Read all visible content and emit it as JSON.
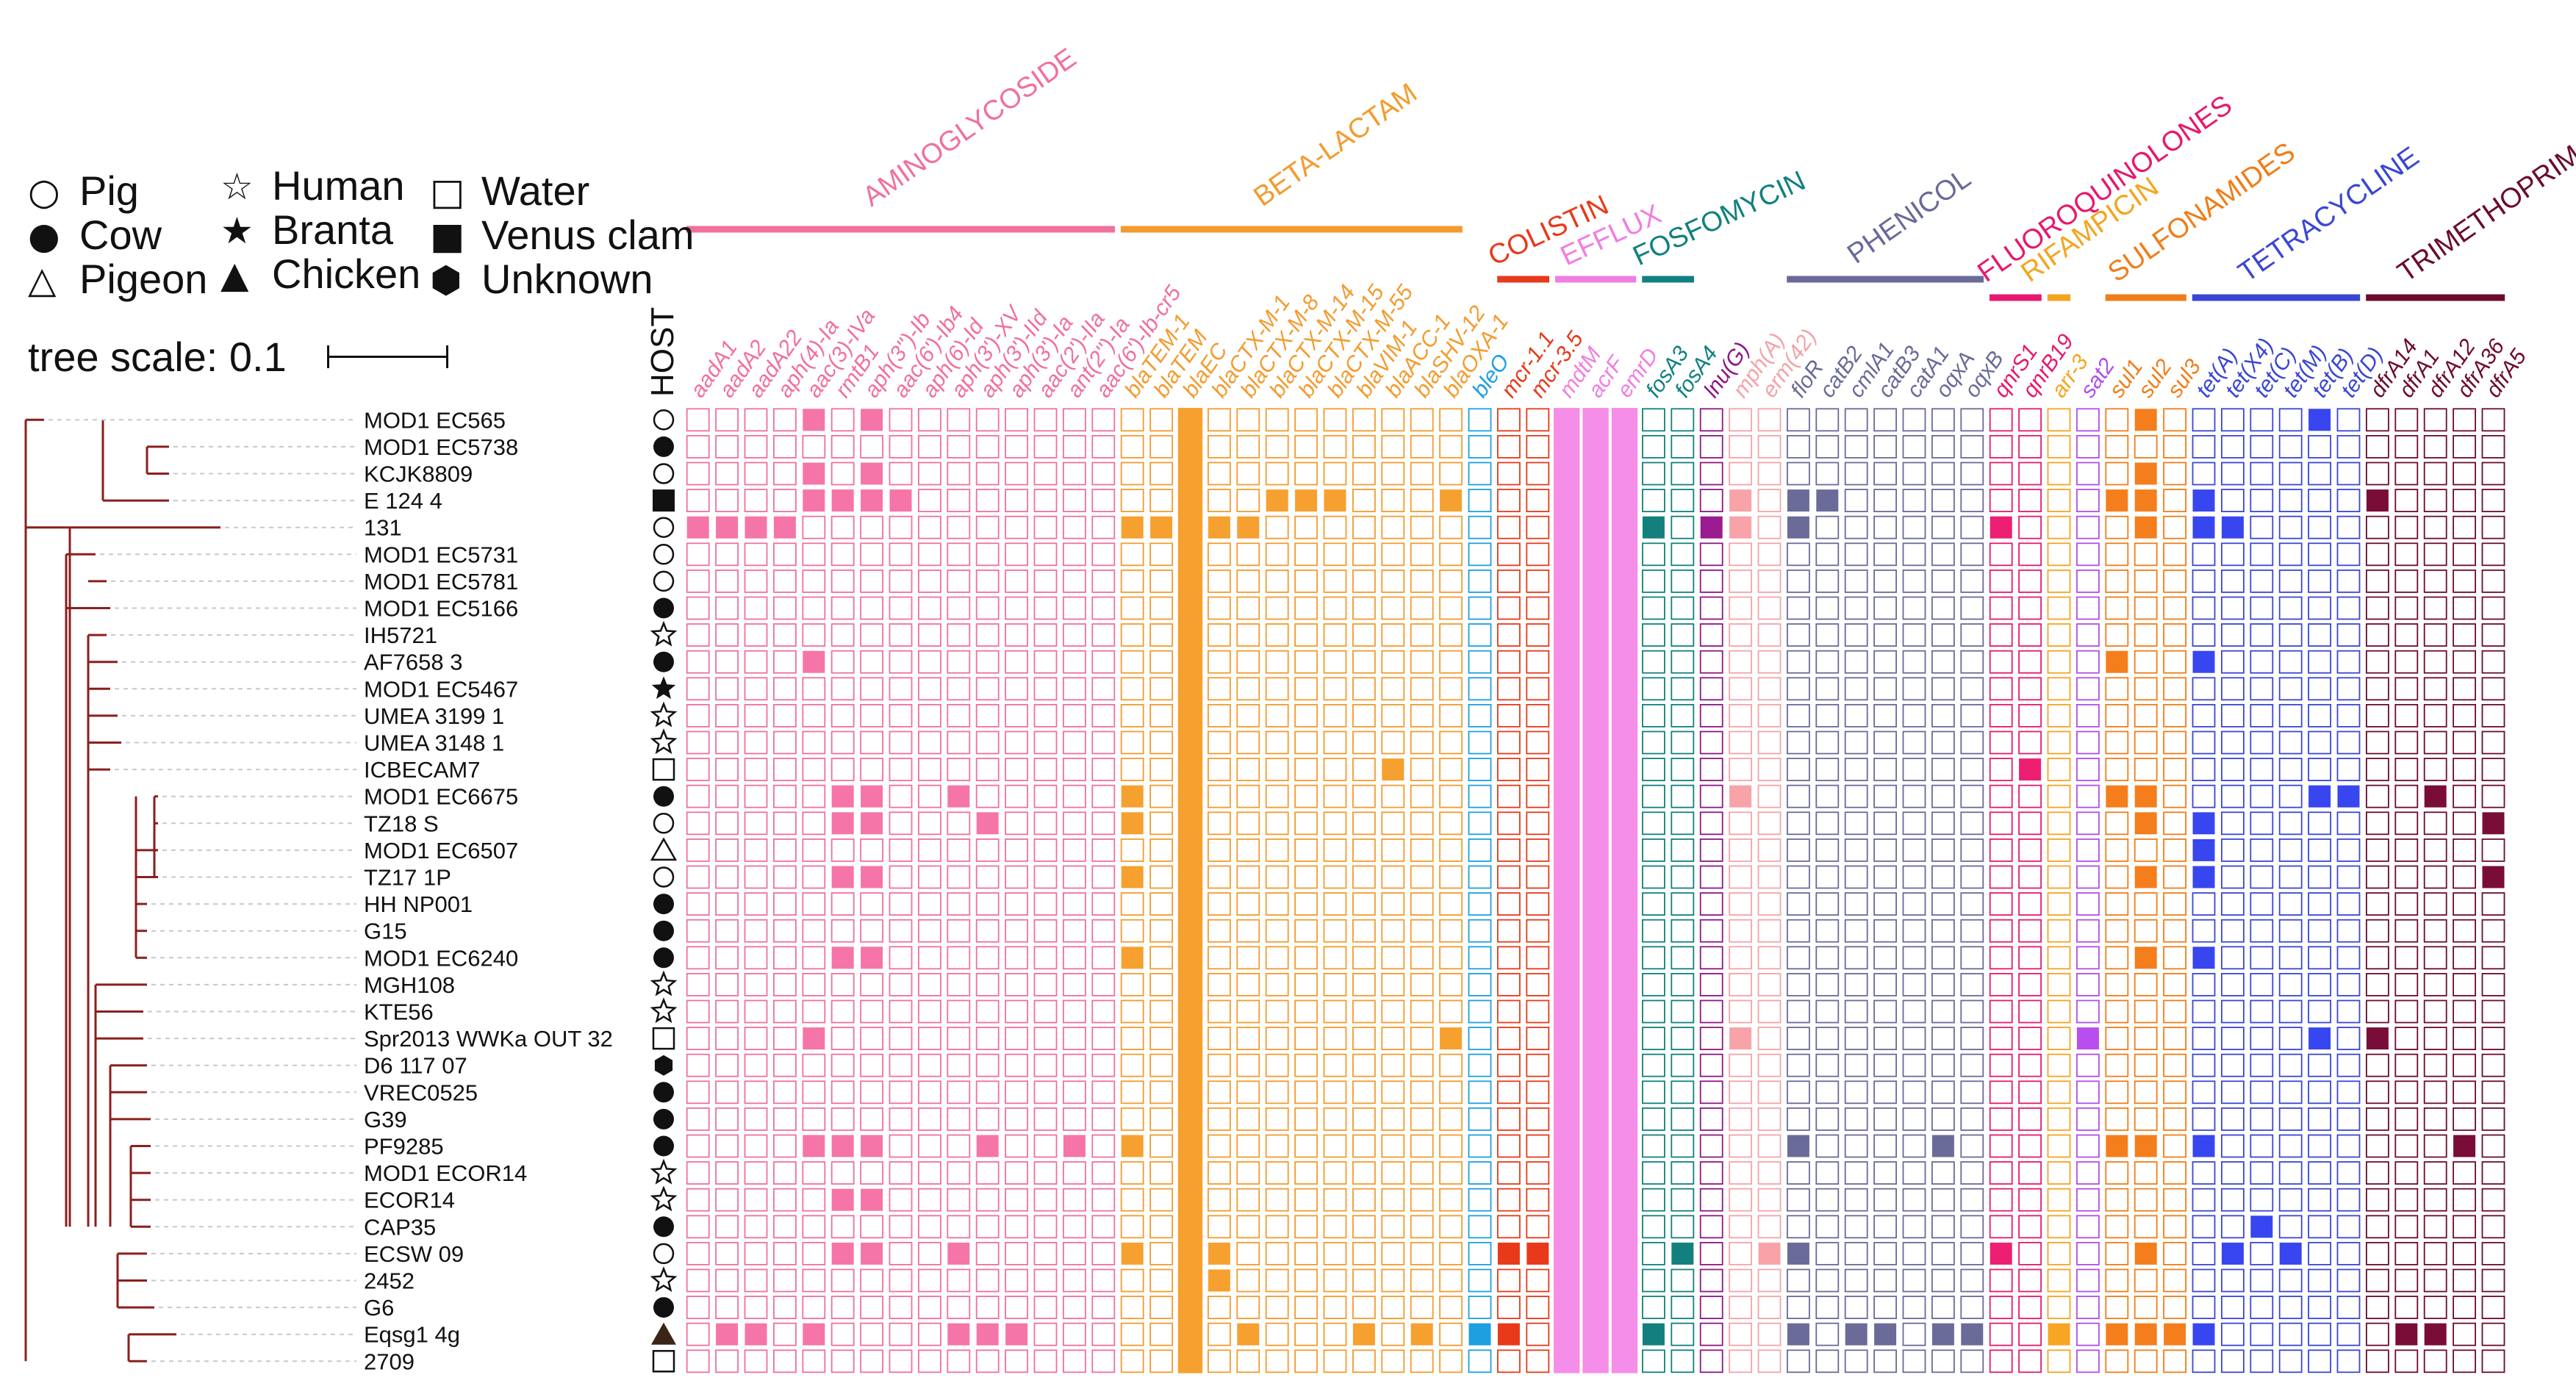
{
  "legend": {
    "items": [
      {
        "icon": "open-circle",
        "glyph": "○",
        "label": "Pig"
      },
      {
        "icon": "filled-circle",
        "glyph": "●",
        "label": "Cow"
      },
      {
        "icon": "open-triangle",
        "glyph": "△",
        "label": "Pigeon"
      },
      {
        "icon": "open-star",
        "glyph": "☆",
        "label": "Human"
      },
      {
        "icon": "filled-star",
        "glyph": "★",
        "label": "Branta"
      },
      {
        "icon": "filled-triangle",
        "glyph": "▲",
        "label": "Chicken"
      },
      {
        "icon": "open-square",
        "glyph": "□",
        "label": "Water"
      },
      {
        "icon": "filled-square",
        "glyph": "■",
        "label": "Venus clam"
      },
      {
        "icon": "filled-hexagon",
        "glyph": "⬢",
        "label": "Unknown"
      }
    ]
  },
  "scale": {
    "label": "tree scale: 0.1"
  },
  "host_header": "HOST",
  "strains": [
    {
      "name": "MOD1 EC565",
      "host": "pig"
    },
    {
      "name": "MOD1 EC5738",
      "host": "cow"
    },
    {
      "name": "KCJK8809",
      "host": "pig"
    },
    {
      "name": "E 124 4",
      "host": "venus"
    },
    {
      "name": "131",
      "host": "pig"
    },
    {
      "name": "MOD1 EC5731",
      "host": "pig"
    },
    {
      "name": "MOD1 EC5781",
      "host": "pig"
    },
    {
      "name": "MOD1 EC5166",
      "host": "cow"
    },
    {
      "name": "IH5721",
      "host": "human"
    },
    {
      "name": "AF7658 3",
      "host": "cow"
    },
    {
      "name": "MOD1 EC5467",
      "host": "branta"
    },
    {
      "name": "UMEA 3199 1",
      "host": "human"
    },
    {
      "name": "UMEA 3148 1",
      "host": "human"
    },
    {
      "name": "ICBECAM7",
      "host": "water"
    },
    {
      "name": "MOD1 EC6675",
      "host": "cow"
    },
    {
      "name": "TZ18 S",
      "host": "pig"
    },
    {
      "name": "MOD1 EC6507",
      "host": "pigeon"
    },
    {
      "name": "TZ17 1P",
      "host": "pig"
    },
    {
      "name": "HH NP001",
      "host": "cow"
    },
    {
      "name": "G15",
      "host": "cow"
    },
    {
      "name": "MOD1 EC6240",
      "host": "cow"
    },
    {
      "name": "MGH108",
      "host": "human"
    },
    {
      "name": "KTE56",
      "host": "human"
    },
    {
      "name": "Spr2013 WWKa OUT 32",
      "host": "water"
    },
    {
      "name": "D6 117 07",
      "host": "unknown"
    },
    {
      "name": "VREC0525",
      "host": "cow"
    },
    {
      "name": "G39",
      "host": "cow"
    },
    {
      "name": "PF9285",
      "host": "cow"
    },
    {
      "name": "MOD1 ECOR14",
      "host": "human"
    },
    {
      "name": "ECOR14",
      "host": "human"
    },
    {
      "name": "CAP35",
      "host": "cow"
    },
    {
      "name": "ECSW 09",
      "host": "pig"
    },
    {
      "name": "2452",
      "host": "human"
    },
    {
      "name": "G6",
      "host": "cow"
    },
    {
      "name": "Eqsg1 4g",
      "host": "chicken"
    },
    {
      "name": "2709",
      "host": "water"
    }
  ],
  "groups": [
    {
      "name": "AMINOGLYCOSIDE",
      "color": "#f0709e",
      "fill": "#f575a8",
      "genes": [
        "aadA1",
        "aadA2",
        "aadA22",
        "aph(4)-Ia",
        "aac(3)-IVa",
        "rmtB1",
        "aph(3'')-Ib",
        "aac(6')-Ib4",
        "aph(6)-Id",
        "aph(3')-XV",
        "aph(3')-IId",
        "aph(3')-Ia",
        "aac(2')-IIa",
        "ant(2'')-Ia",
        "aac(6')-Ib-cr5"
      ]
    },
    {
      "name": "BETA-LACTAM",
      "color": "#f39b2e",
      "fill": "#f6a030",
      "genes": [
        "blaTEM-1",
        "blaTEM",
        "blaEC",
        "blaCTX-M-1",
        "blaCTX-M-8",
        "blaCTX-M-14",
        "blaCTX-M-15",
        "blaCTX-M-55",
        "blaVIM-1",
        "blaACC-1",
        "blaSHV-12",
        "blaOXA-1"
      ]
    },
    {
      "name": "",
      "color": "#1e9fe0",
      "fill": "#1e9fe0",
      "genes": [
        "bleO"
      ]
    },
    {
      "name": "COLISTIN",
      "color": "#e8391a",
      "fill": "#e8391a",
      "genes": [
        "mcr-1.1",
        "mcr-3.5"
      ]
    },
    {
      "name": "EFFLUX",
      "color": "#f07ee2",
      "fill": "#f58ee8",
      "genes": [
        "mdtM",
        "acrF",
        "emrD"
      ]
    },
    {
      "name": "FOSFOMYCIN",
      "color": "#118080",
      "fill": "#13807e",
      "genes": [
        "fosA3",
        "fosA4"
      ]
    },
    {
      "name": "",
      "color": "#8e1685",
      "fill": "#9b1a90",
      "genes": [
        "lnu(G)"
      ]
    },
    {
      "name": "",
      "color": "#f4a3a8",
      "fill": "#f7a3a8",
      "genes": [
        "mph(A)",
        "erm(42)"
      ]
    },
    {
      "name": "PHENICOL",
      "color": "#6a6a98",
      "fill": "#6b6b9a",
      "genes": [
        "floR",
        "catB2",
        "cmlA1",
        "catB3",
        "catA1",
        "oqxA",
        "oqxB"
      ]
    },
    {
      "name": "FLUOROQUINOLONES",
      "color": "#e6196e",
      "fill": "#ec1f72",
      "genes": [
        "qnrS1",
        "qnrB19"
      ]
    },
    {
      "name": "RIFAMPICIN",
      "color": "#f4a51f",
      "fill": "#f6a622",
      "genes": [
        "arr-3"
      ]
    },
    {
      "name": "",
      "color": "#b14ee8",
      "fill": "#b84ef0",
      "genes": [
        "sat2"
      ]
    },
    {
      "name": "SULFONAMIDES",
      "color": "#f07d18",
      "fill": "#f57e1c",
      "genes": [
        "sul1",
        "sul2",
        "sul3"
      ]
    },
    {
      "name": "TETRACYCLINE",
      "color": "#3a46d4",
      "fill": "#3846f0",
      "genes": [
        "tet(A)",
        "tet(X4)",
        "tet(C)",
        "tet(M)",
        "tet(B)",
        "tet(D)"
      ]
    },
    {
      "name": "TRIMETHOPRIM",
      "color": "#6c0b2e",
      "fill": "#7a0d38",
      "genes": [
        "dfrA14",
        "dfrA1",
        "dfrA12",
        "dfrA36",
        "dfrA5"
      ]
    }
  ],
  "present": {
    "MOD1 EC565": [
      "blaEC",
      "tet(B)",
      "aac(3)-IVa",
      "aph(3'')-Ib",
      "sul2"
    ],
    "MOD1 EC5738": [
      "blaEC"
    ],
    "KCJK8809": [
      "aac(3)-IVa",
      "aph(3'')-Ib",
      "blaEC",
      "sul2"
    ],
    "E 124 4": [
      "aac(3)-IVa",
      "rmtB1",
      "aph(3'')-Ib",
      "aac(6')-Ib4",
      "blaEC",
      "blaCTX-M-14",
      "blaCTX-M-15",
      "blaCTX-M-55",
      "blaOXA-1",
      "mph(A)",
      "floR",
      "catB2",
      "sul1",
      "sul2",
      "tet(A)",
      "dfrA14"
    ],
    "131": [
      "aadA1",
      "aadA2",
      "aadA22",
      "aph(4)-Ia",
      "blaTEM-1",
      "blaTEM",
      "blaEC",
      "blaCTX-M-1",
      "blaCTX-M-8",
      "fosA3",
      "lnu(G)",
      "mph(A)",
      "floR",
      "qnrS1",
      "sul2",
      "tet(A)",
      "tet(X4)"
    ],
    "MOD1 EC5731": [
      "blaEC"
    ],
    "MOD1 EC5781": [
      "blaEC"
    ],
    "MOD1 EC5166": [
      "blaEC"
    ],
    "IH5721": [
      "blaEC"
    ],
    "AF7658 3": [
      "aac(3)-IVa",
      "blaEC",
      "sul1",
      "tet(A)"
    ],
    "MOD1 EC5467": [
      "blaEC"
    ],
    "UMEA 3199 1": [
      "blaEC"
    ],
    "UMEA 3148 1": [
      "blaEC"
    ],
    "ICBECAM7": [
      "blaEC",
      "blaACC-1",
      "qnrB19"
    ],
    "MOD1 EC6675": [
      "rmtB1",
      "aph(3'')-Ib",
      "aph(3')-XV",
      "blaTEM-1",
      "blaEC",
      "mph(A)",
      "sul1",
      "sul2",
      "tet(B)",
      "tet(D)",
      "dfrA12"
    ],
    "TZ18 S": [
      "rmtB1",
      "aph(3'')-Ib",
      "aph(3')-IId",
      "blaTEM-1",
      "blaEC",
      "sul2",
      "tet(A)",
      "dfrA5"
    ],
    "MOD1 EC6507": [
      "blaEC",
      "tet(A)"
    ],
    "TZ17 1P": [
      "rmtB1",
      "aph(3'')-Ib",
      "blaTEM-1",
      "blaEC",
      "sul2",
      "tet(A)",
      "dfrA5"
    ],
    "HH NP001": [
      "blaEC"
    ],
    "G15": [
      "blaEC"
    ],
    "MOD1 EC6240": [
      "rmtB1",
      "aph(3'')-Ib",
      "blaTEM-1",
      "blaEC",
      "sul2",
      "tet(A)"
    ],
    "MGH108": [
      "blaEC"
    ],
    "KTE56": [
      "blaEC"
    ],
    "Spr2013 WWKa OUT 32": [
      "aac(3)-IVa",
      "blaEC",
      "blaOXA-1",
      "mph(A)",
      "sat2",
      "tet(B)",
      "dfrA14"
    ],
    "D6 117 07": [
      "blaEC"
    ],
    "VREC0525": [
      "blaEC"
    ],
    "G39": [
      "blaEC"
    ],
    "PF9285": [
      "aac(3)-IVa",
      "rmtB1",
      "aph(3'')-Ib",
      "aph(3')-IId",
      "ant(2'')-Ia",
      "blaTEM-1",
      "blaEC",
      "floR",
      "oqxA",
      "sul1",
      "sul2",
      "tet(A)",
      "dfrA36"
    ],
    "MOD1 ECOR14": [
      "blaEC"
    ],
    "ECOR14": [
      "rmtB1",
      "aph(3'')-Ib",
      "blaEC"
    ],
    "CAP35": [
      "blaEC",
      "tet(C)"
    ],
    "ECSW 09": [
      "rmtB1",
      "aph(3'')-Ib",
      "aph(3')-XV",
      "blaTEM-1",
      "blaEC",
      "blaCTX-M-1",
      "mcr-1.1",
      "mcr-3.5",
      "fosA4",
      "erm(42)",
      "floR",
      "qnrS1",
      "sul2",
      "tet(X4)",
      "tet(M)"
    ],
    "2452": [
      "blaEC",
      "blaCTX-M-1"
    ],
    "G6": [
      "blaEC"
    ],
    "Eqsg1 4g": [
      "aadA2",
      "aadA22",
      "aac(3)-IVa",
      "aph(3')-XV",
      "aph(3')-IId",
      "aph(3')-Ia",
      "blaEC",
      "blaCTX-M-8",
      "blaSHV-12",
      "blaVIM-1",
      "bleO",
      "mcr-1.1",
      "fosA3",
      "floR",
      "cmlA1",
      "catB3",
      "oqxA",
      "oqxB",
      "arr-3",
      "sul1",
      "sul2",
      "sul3",
      "tet(A)",
      "dfrA1",
      "dfrA12"
    ],
    "2709": [
      "blaEC"
    ]
  },
  "always_present": [
    "mdtM",
    "acrF",
    "emrD"
  ]
}
